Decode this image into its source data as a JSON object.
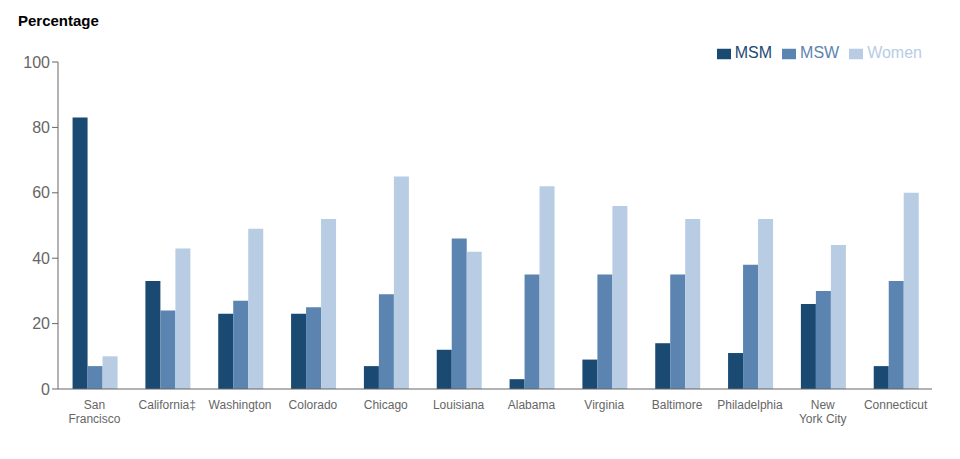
{
  "chart_data": {
    "type": "bar",
    "ylabel": "Percentage",
    "categories": [
      "San\nFrancisco",
      "California‡",
      "Washington",
      "Colorado",
      "Chicago",
      "Louisiana",
      "Alabama",
      "Virginia",
      "Baltimore",
      "Philadelphia",
      "New\nYork City",
      "Connecticut"
    ],
    "series": [
      {
        "name": "MSM",
        "color": "#1a4a72",
        "values": [
          83,
          33,
          23,
          23,
          7,
          12,
          3,
          9,
          14,
          11,
          26,
          7
        ]
      },
      {
        "name": "MSW",
        "color": "#5b84b1",
        "values": [
          7,
          24,
          27,
          25,
          29,
          46,
          35,
          35,
          35,
          38,
          30,
          33
        ]
      },
      {
        "name": "Women",
        "color": "#b8cce4",
        "values": [
          10,
          43,
          49,
          52,
          65,
          42,
          62,
          56,
          52,
          52,
          44,
          60
        ]
      }
    ],
    "ylim": [
      0,
      100
    ],
    "yticks": [
      0,
      20,
      40,
      60,
      80,
      100
    ],
    "grid": false,
    "legend": "upper right"
  }
}
